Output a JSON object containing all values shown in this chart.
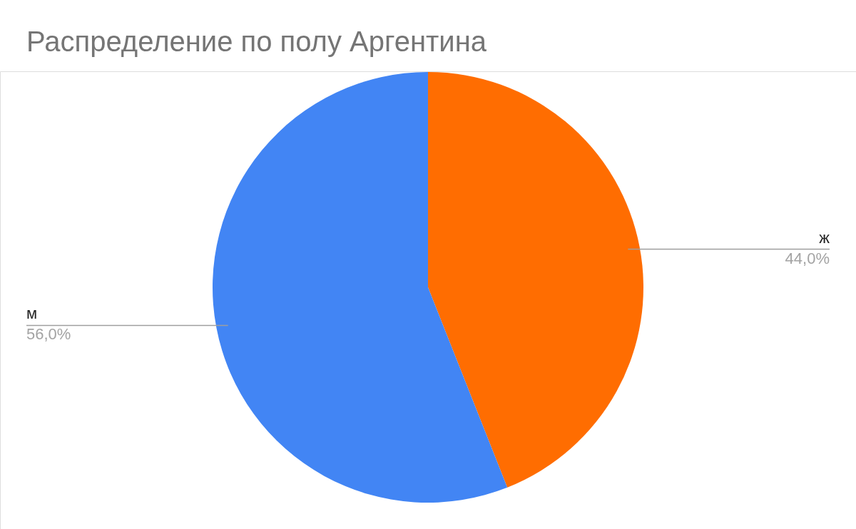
{
  "chart_data": {
    "type": "pie",
    "title": "Распределение по полу Аргентина",
    "categories": [
      "ж",
      "м"
    ],
    "values": [
      44,
      56
    ],
    "colors": [
      "#ff6d01",
      "#4285f4"
    ],
    "value_labels": [
      "44,0%",
      "56,0%"
    ]
  }
}
